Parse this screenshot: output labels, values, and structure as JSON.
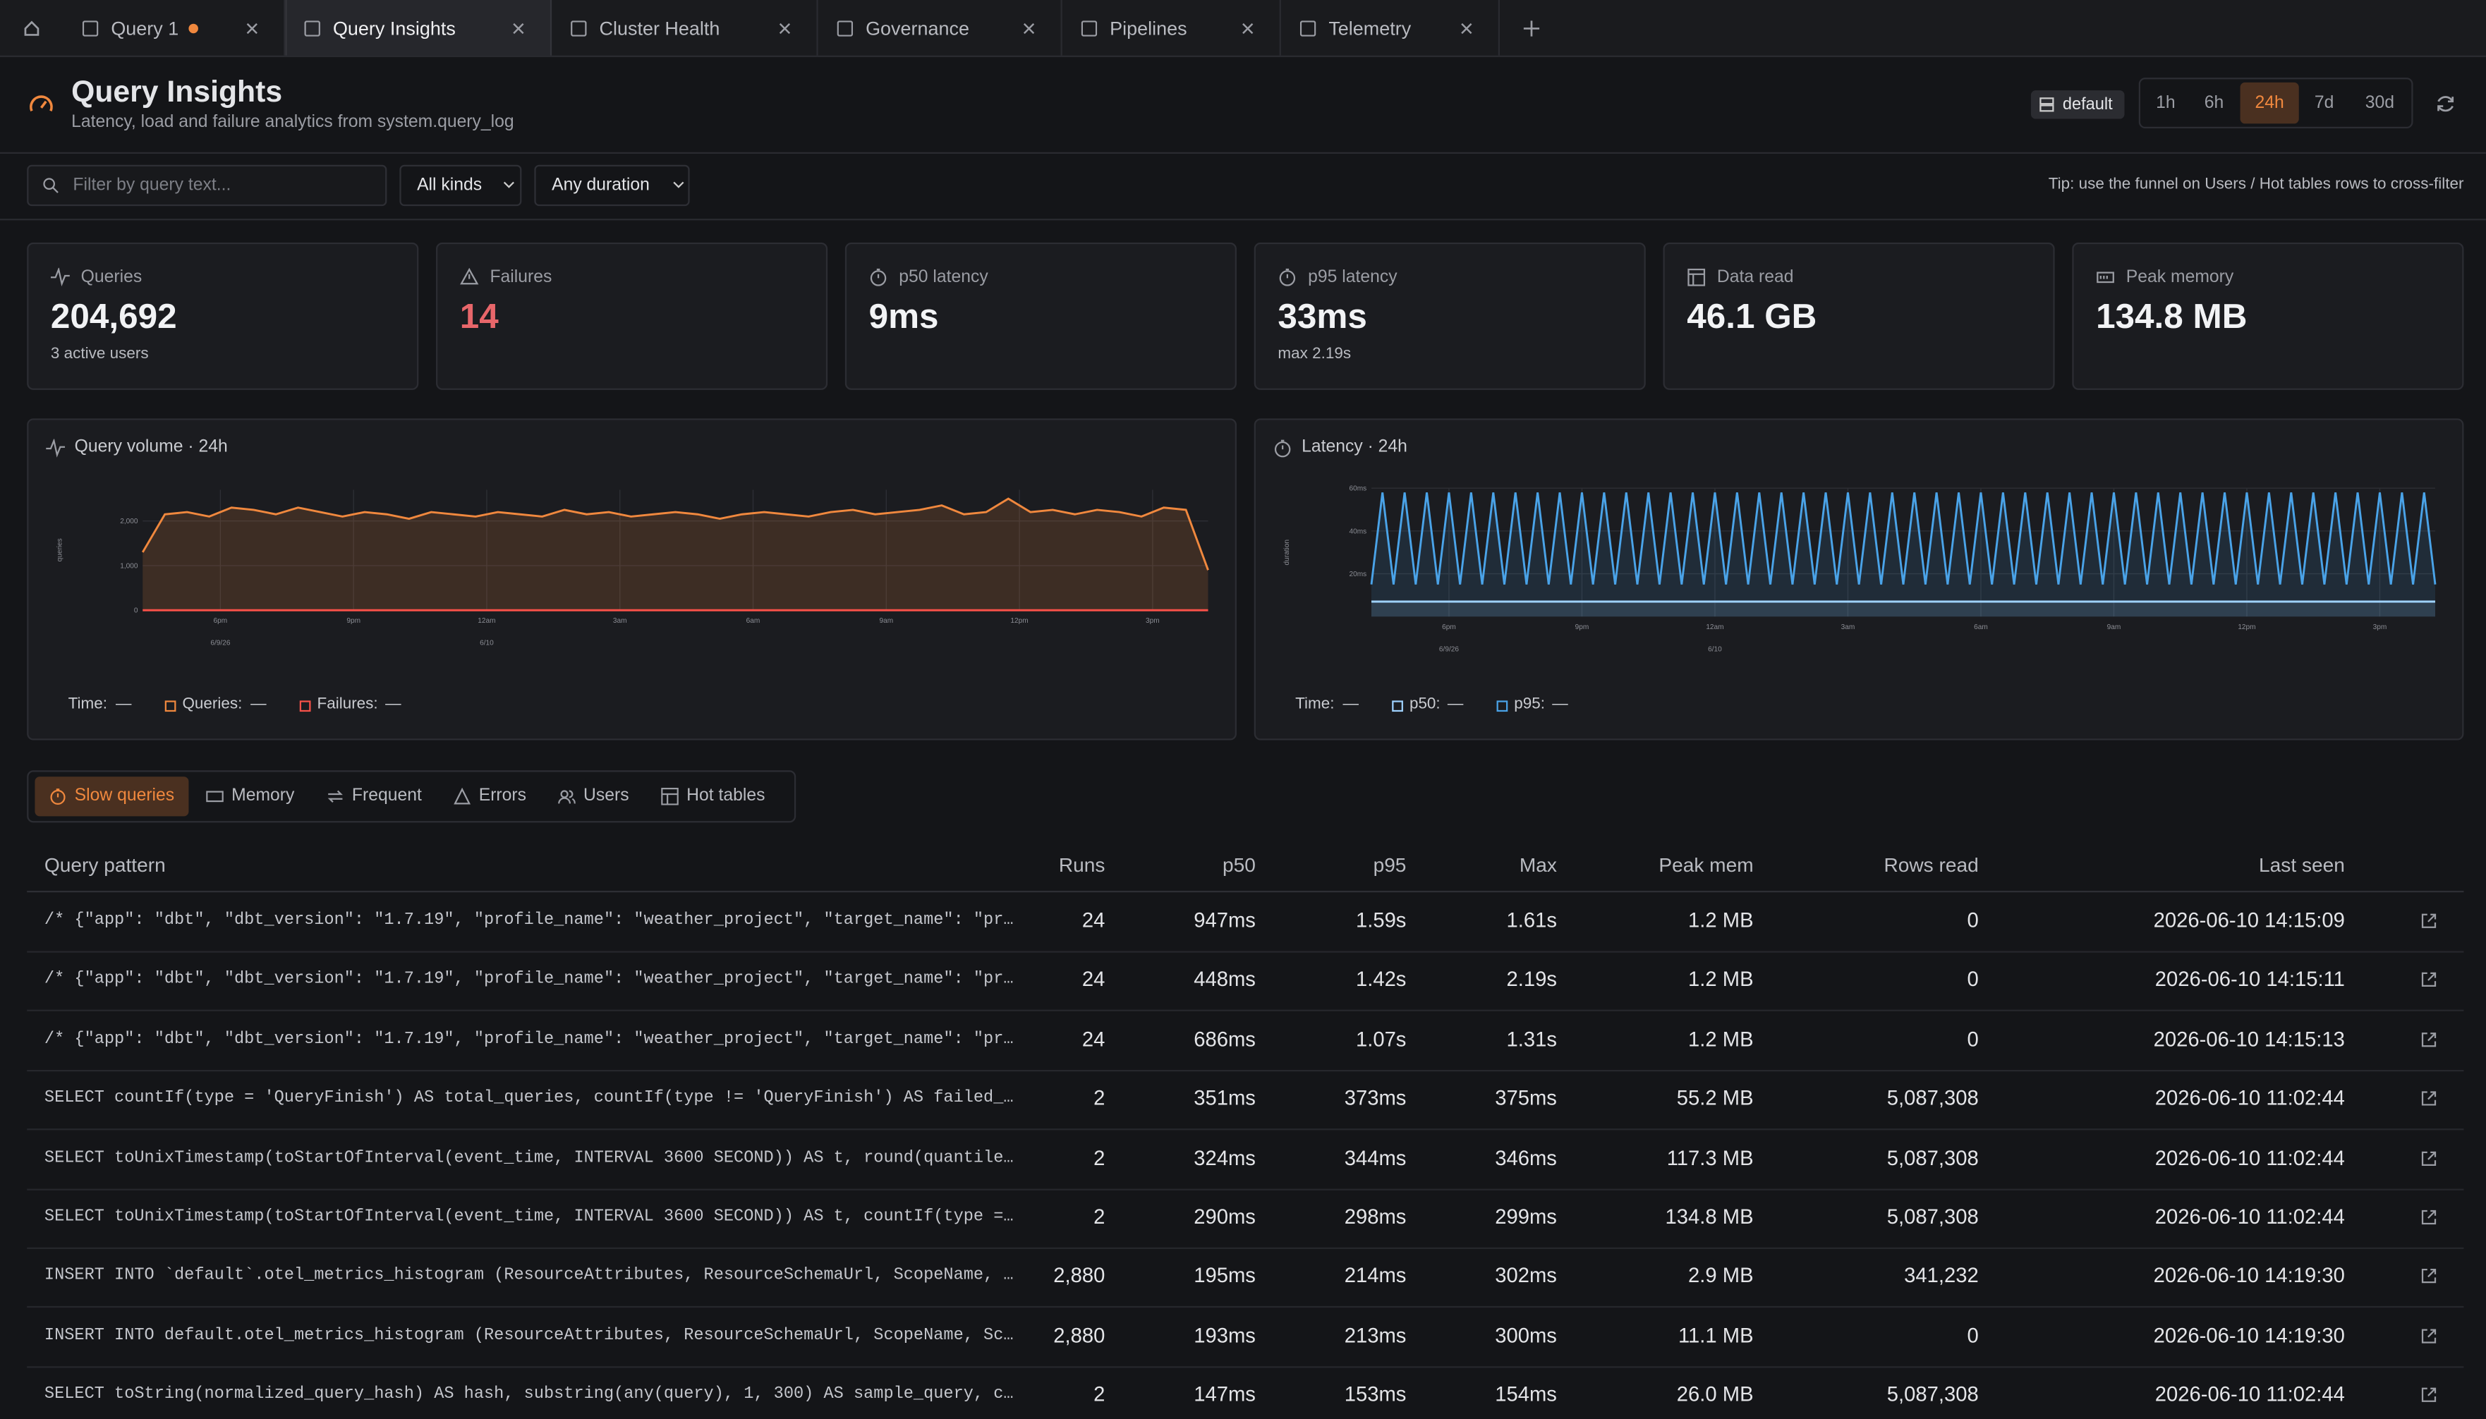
{
  "tabs": [
    {
      "label": "Query 1",
      "unsaved": true
    },
    {
      "label": "Query Insights",
      "active": true
    },
    {
      "label": "Cluster Health"
    },
    {
      "label": "Governance"
    },
    {
      "label": "Pipelines"
    },
    {
      "label": "Telemetry"
    }
  ],
  "header": {
    "title": "Query Insights",
    "subtitle": "Latency, load and failure analytics from system.query_log",
    "database": "default",
    "ranges": [
      "1h",
      "6h",
      "24h",
      "7d",
      "30d"
    ],
    "active_range": "24h"
  },
  "filters": {
    "search_placeholder": "Filter by query text...",
    "kind": "All kinds",
    "duration": "Any duration",
    "tip": "Tip: use the funnel on Users / Hot tables rows to cross-filter"
  },
  "kpis": [
    {
      "label": "Queries",
      "value": "204,692",
      "note": "3 active users"
    },
    {
      "label": "Failures",
      "value": "14",
      "color": "#e8666a"
    },
    {
      "label": "p50 latency",
      "value": "9ms"
    },
    {
      "label": "p95 latency",
      "value": "33ms",
      "note": "max 2.19s"
    },
    {
      "label": "Data read",
      "value": "46.1 GB"
    },
    {
      "label": "Peak memory",
      "value": "134.8 MB"
    }
  ],
  "chart_data": [
    {
      "type": "line",
      "title": "Query volume · 24h",
      "y_label": "queries",
      "x": [
        0,
        0.5,
        1,
        1.5,
        2,
        2.5,
        3,
        3.5,
        4,
        4.5,
        5,
        5.5,
        6,
        6.5,
        7,
        7.5,
        8,
        8.5,
        9,
        9.5,
        10,
        10.5,
        11,
        11.5,
        12,
        12.5,
        13,
        13.5,
        14,
        14.5,
        15,
        15.5,
        16,
        16.5,
        17,
        17.5,
        18,
        18.5,
        19,
        19.5,
        20,
        20.5,
        21,
        21.5,
        22,
        22.5,
        23,
        23.5,
        24
      ],
      "xlim": [
        0,
        24
      ],
      "xticks": [
        {
          "value": 1.75,
          "label": "6pm"
        },
        {
          "value": 4.75,
          "label": "9pm"
        },
        {
          "value": 7.75,
          "label": "12am"
        },
        {
          "value": 10.75,
          "label": "3am"
        },
        {
          "value": 13.75,
          "label": "6am"
        },
        {
          "value": 16.75,
          "label": "9am"
        },
        {
          "value": 19.75,
          "label": "12pm"
        },
        {
          "value": 22.75,
          "label": "3pm"
        }
      ],
      "date_ticks": [
        {
          "value": 1.75,
          "label": "6/9/26"
        },
        {
          "value": 7.75,
          "label": "6/10"
        }
      ],
      "ylim": [
        0,
        2700
      ],
      "yticks": [
        0,
        {
          "value": 1000,
          "label": "1,000"
        },
        {
          "value": 2000,
          "label": "2,000"
        }
      ],
      "grid": true,
      "series": [
        {
          "color": "#f0883e",
          "area": true,
          "values": [
            1300,
            2150,
            2200,
            2100,
            2300,
            2250,
            2150,
            2300,
            2200,
            2100,
            2200,
            2150,
            2050,
            2200,
            2150,
            2100,
            2200,
            2150,
            2100,
            2250,
            2150,
            2200,
            2100,
            2150,
            2200,
            2150,
            2050,
            2150,
            2200,
            2150,
            2100,
            2200,
            2250,
            2150,
            2200,
            2250,
            2350,
            2150,
            2200,
            2500,
            2200,
            2250,
            2150,
            2250,
            2200,
            2100,
            2300,
            2250,
            900
          ]
        },
        {
          "color": "#f85149",
          "values": [
            0,
            0,
            0,
            0,
            0,
            0,
            0,
            0,
            0,
            0,
            0,
            0,
            0,
            0,
            0,
            0,
            0,
            0,
            0,
            0,
            0,
            0,
            0,
            0,
            0,
            0,
            0,
            0,
            0,
            0,
            0,
            0,
            0,
            0,
            0,
            0,
            0,
            0,
            0,
            0,
            0,
            0,
            0,
            0,
            0,
            0,
            0,
            0,
            0
          ]
        }
      ],
      "legend": [
        {
          "label": "Time:",
          "value": "—"
        },
        {
          "label": "Queries:",
          "value": "—",
          "color": "#f0883e"
        },
        {
          "label": "Failures:",
          "value": "—",
          "color": "#f85149"
        }
      ]
    },
    {
      "type": "line",
      "title": "Latency · 24h",
      "y_label": "duration",
      "x": [
        0,
        0.25,
        0.5,
        0.75,
        1,
        1.25,
        1.5,
        1.75,
        2,
        2.25,
        2.5,
        2.75,
        3,
        3.25,
        3.5,
        3.75,
        4,
        4.25,
        4.5,
        4.75,
        5,
        5.25,
        5.5,
        5.75,
        6,
        6.25,
        6.5,
        6.75,
        7,
        7.25,
        7.5,
        7.75,
        8,
        8.25,
        8.5,
        8.75,
        9,
        9.25,
        9.5,
        9.75,
        10,
        10.25,
        10.5,
        10.75,
        11,
        11.25,
        11.5,
        11.75,
        12,
        12.25,
        12.5,
        12.75,
        13,
        13.25,
        13.5,
        13.75,
        14,
        14.25,
        14.5,
        14.75,
        15,
        15.25,
        15.5,
        15.75,
        16,
        16.25,
        16.5,
        16.75,
        17,
        17.25,
        17.5,
        17.75,
        18,
        18.25,
        18.5,
        18.75,
        19,
        19.25,
        19.5,
        19.75,
        20,
        20.25,
        20.5,
        20.75,
        21,
        21.25,
        21.5,
        21.75,
        22,
        22.25,
        22.5,
        22.75,
        23,
        23.25,
        23.5,
        23.75,
        24
      ],
      "xlim": [
        0,
        24
      ],
      "xticks": [
        {
          "value": 1.75,
          "label": "6pm"
        },
        {
          "value": 4.75,
          "label": "9pm"
        },
        {
          "value": 7.75,
          "label": "12am"
        },
        {
          "value": 10.75,
          "label": "3am"
        },
        {
          "value": 13.75,
          "label": "6am"
        },
        {
          "value": 16.75,
          "label": "9am"
        },
        {
          "value": 19.75,
          "label": "12pm"
        },
        {
          "value": 22.75,
          "label": "3pm"
        }
      ],
      "date_ticks": [
        {
          "value": 1.75,
          "label": "6/9/26"
        },
        {
          "value": 7.75,
          "label": "6/10"
        }
      ],
      "ylim": [
        0,
        60
      ],
      "yticks": [
        {
          "value": 20,
          "label": "20ms"
        },
        {
          "value": 40,
          "label": "40ms"
        },
        {
          "value": 60,
          "label": "60ms"
        }
      ],
      "grid": true,
      "series": [
        {
          "color": "#9fd2ff",
          "area": true,
          "values": [
            7,
            7,
            7,
            7,
            7,
            7,
            7,
            7,
            7,
            7,
            7,
            7,
            7,
            7,
            7,
            7,
            7,
            7,
            7,
            7,
            7,
            7,
            7,
            7,
            7,
            7,
            7,
            7,
            7,
            7,
            7,
            7,
            7,
            7,
            7,
            7,
            7,
            7,
            7,
            7,
            7,
            7,
            7,
            7,
            7,
            7,
            7,
            7,
            7,
            7,
            7,
            7,
            7,
            7,
            7,
            7,
            7,
            7,
            7,
            7,
            7,
            7,
            7,
            7,
            7,
            7,
            7,
            7,
            7,
            7,
            7,
            7,
            7,
            7,
            7,
            7,
            7,
            7,
            7,
            7,
            7,
            7,
            7,
            7,
            7,
            7,
            7,
            7,
            7,
            7,
            7,
            7,
            7,
            7,
            7,
            7,
            7
          ]
        },
        {
          "color": "#4aa3e8",
          "area": true,
          "values": [
            15,
            58,
            15,
            58,
            15,
            58,
            15,
            58,
            15,
            58,
            15,
            58,
            15,
            58,
            15,
            58,
            15,
            58,
            15,
            58,
            15,
            58,
            15,
            58,
            15,
            58,
            15,
            58,
            15,
            58,
            15,
            58,
            15,
            58,
            15,
            58,
            15,
            58,
            15,
            58,
            15,
            58,
            15,
            58,
            15,
            58,
            15,
            58,
            15,
            58,
            15,
            58,
            15,
            58,
            15,
            58,
            15,
            58,
            15,
            58,
            15,
            58,
            15,
            58,
            15,
            58,
            15,
            58,
            15,
            58,
            15,
            58,
            15,
            58,
            15,
            58,
            15,
            58,
            15,
            58,
            15,
            58,
            15,
            58,
            15,
            58,
            15,
            58,
            15,
            58,
            15,
            58,
            15,
            58,
            15,
            58,
            15
          ]
        }
      ],
      "legend": [
        {
          "label": "Time:",
          "value": "—"
        },
        {
          "label": "p50:",
          "value": "—",
          "color": "#9fd2ff"
        },
        {
          "label": "p95:",
          "value": "—",
          "color": "#4aa3e8"
        }
      ]
    }
  ],
  "views": {
    "tabs": [
      "Slow queries",
      "Memory",
      "Frequent",
      "Errors",
      "Users",
      "Hot tables"
    ],
    "active": "Slow queries"
  },
  "table": {
    "columns": [
      "Query pattern",
      "Runs",
      "p50",
      "p95",
      "Max",
      "Peak mem",
      "Rows read",
      "Last seen"
    ],
    "rows": [
      [
        "/* {\"app\": \"dbt\", \"dbt_version\": \"1.7.19\", \"profile_name\": \"weather_project\", \"target_name\": \"pr…",
        "24",
        "947ms",
        "1.59s",
        "1.61s",
        "1.2 MB",
        "0",
        "2026-06-10 14:15:09"
      ],
      [
        "/* {\"app\": \"dbt\", \"dbt_version\": \"1.7.19\", \"profile_name\": \"weather_project\", \"target_name\": \"pr…",
        "24",
        "448ms",
        "1.42s",
        "2.19s",
        "1.2 MB",
        "0",
        "2026-06-10 14:15:11"
      ],
      [
        "/* {\"app\": \"dbt\", \"dbt_version\": \"1.7.19\", \"profile_name\": \"weather_project\", \"target_name\": \"pr…",
        "24",
        "686ms",
        "1.07s",
        "1.31s",
        "1.2 MB",
        "0",
        "2026-06-10 14:15:13"
      ],
      [
        "SELECT countIf(type = 'QueryFinish') AS total_queries, countIf(type != 'QueryFinish') AS failed_…",
        "2",
        "351ms",
        "373ms",
        "375ms",
        "55.2 MB",
        "5,087,308",
        "2026-06-10 11:02:44"
      ],
      [
        "SELECT toUnixTimestamp(toStartOfInterval(event_time, INTERVAL 3600 SECOND)) AS t, round(quantile…",
        "2",
        "324ms",
        "344ms",
        "346ms",
        "117.3 MB",
        "5,087,308",
        "2026-06-10 11:02:44"
      ],
      [
        "SELECT toUnixTimestamp(toStartOfInterval(event_time, INTERVAL 3600 SECOND)) AS t, countIf(type =…",
        "2",
        "290ms",
        "298ms",
        "299ms",
        "134.8 MB",
        "5,087,308",
        "2026-06-10 11:02:44"
      ],
      [
        "INSERT INTO `default`.otel_metrics_histogram (ResourceAttributes, ResourceSchemaUrl, ScopeName, …",
        "2,880",
        "195ms",
        "214ms",
        "302ms",
        "2.9 MB",
        "341,232",
        "2026-06-10 14:19:30"
      ],
      [
        "INSERT INTO default.otel_metrics_histogram (ResourceAttributes, ResourceSchemaUrl, ScopeName, Sc…",
        "2,880",
        "193ms",
        "213ms",
        "300ms",
        "11.1 MB",
        "0",
        "2026-06-10 14:19:30"
      ],
      [
        "SELECT toString(normalized_query_hash) AS hash, substring(any(query), 1, 300) AS sample_query, c…",
        "2",
        "147ms",
        "153ms",
        "154ms",
        "26.0 MB",
        "5,087,308",
        "2026-06-10 11:02:44"
      ]
    ]
  }
}
